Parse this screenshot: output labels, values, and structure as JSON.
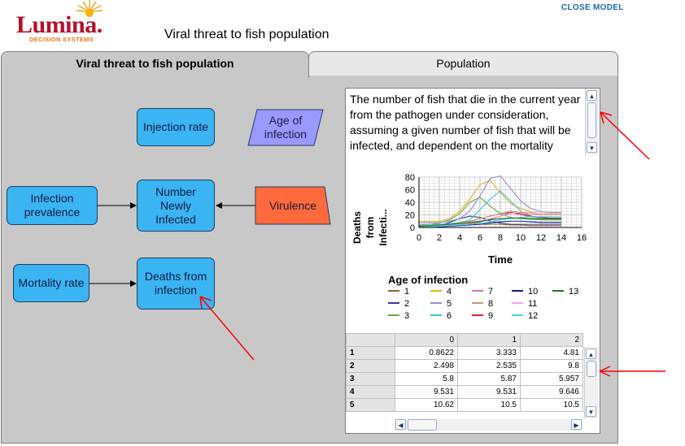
{
  "header": {
    "logo_text": "Lumina.",
    "logo_subtitle": "DECISION SYSTEMS",
    "close_model": "CLOSE MODEL",
    "page_title": "Viral threat to fish population"
  },
  "tabs": [
    {
      "label": "Viral threat to fish population",
      "active": true
    },
    {
      "label": "Population",
      "active": false
    }
  ],
  "nodes": {
    "injection_rate": "Injection rate",
    "age_of_infection": "Age of infection",
    "infection_prevalence": "Infection prevalence",
    "number_newly_infected": "Number Newly Infected",
    "virulence": "Virulence",
    "mortality_rate": "Mortality rate",
    "deaths_from_infection": "Deaths from infection"
  },
  "colors": {
    "variable_node": "#3ab4f2",
    "decision_node": "#9999ff",
    "chance_node": "#ff6a3d",
    "annotation_arrow": "#ff0000"
  },
  "description": "The number of fish that die in the current year from the pathogen under consideration, assuming a given number of fish that will be infected, and dependent on the mortality",
  "chart_data": {
    "type": "line",
    "xlabel": "Time",
    "ylabel": "Deaths from Infecti...",
    "xlim": [
      0,
      16
    ],
    "ylim": [
      0,
      80
    ],
    "xticks": [
      0,
      2,
      4,
      6,
      8,
      10,
      12,
      14,
      16
    ],
    "yticks": [
      0,
      20,
      40,
      60,
      80
    ],
    "grid": true,
    "legend_title": "Age of infection",
    "x": [
      0,
      1,
      2,
      3,
      4,
      5,
      6,
      7,
      8,
      9,
      10,
      11,
      12,
      13,
      14
    ],
    "series": [
      {
        "name": "1",
        "color": "#9a5a3a",
        "values": [
          0,
          1,
          2,
          3,
          4,
          5,
          5,
          5,
          5,
          4,
          4,
          3,
          3,
          3,
          3
        ]
      },
      {
        "name": "2",
        "color": "#3a3a8a",
        "values": [
          0,
          1,
          3,
          8,
          14,
          18,
          16,
          10,
          7,
          5,
          5,
          5,
          5,
          5,
          5
        ]
      },
      {
        "name": "3",
        "color": "#6aa83a",
        "values": [
          3,
          5,
          7,
          12,
          22,
          40,
          48,
          34,
          22,
          16,
          14,
          13,
          12,
          12,
          12
        ]
      },
      {
        "name": "4",
        "color": "#e8b020",
        "values": [
          10,
          10,
          10,
          14,
          26,
          45,
          68,
          75,
          55,
          38,
          30,
          25,
          22,
          22,
          22
        ]
      },
      {
        "name": "5",
        "color": "#9a8ac8",
        "values": [
          8,
          8,
          8,
          10,
          14,
          26,
          50,
          78,
          82,
          62,
          42,
          30,
          25,
          24,
          24
        ]
      },
      {
        "name": "6",
        "color": "#3ac8c8",
        "values": [
          5,
          5,
          5,
          6,
          8,
          12,
          28,
          45,
          58,
          42,
          26,
          18,
          14,
          13,
          13
        ]
      },
      {
        "name": "7",
        "color": "#d86ad8",
        "values": [
          2,
          2,
          3,
          4,
          6,
          9,
          14,
          18,
          22,
          24,
          20,
          17,
          15,
          14,
          14
        ]
      },
      {
        "name": "8",
        "color": "#b8a070",
        "values": [
          3,
          3,
          4,
          5,
          7,
          10,
          14,
          18,
          22,
          26,
          24,
          22,
          20,
          20,
          20
        ]
      },
      {
        "name": "9",
        "color": "#e82020",
        "values": [
          1,
          1,
          2,
          3,
          4,
          6,
          9,
          13,
          18,
          24,
          22,
          18,
          16,
          15,
          15
        ]
      },
      {
        "name": "10",
        "color": "#101a8a",
        "values": [
          0,
          0,
          1,
          2,
          3,
          4,
          5,
          7,
          9,
          10,
          10,
          9,
          8,
          8,
          8
        ]
      },
      {
        "name": "11",
        "color": "#f0a8e0",
        "values": [
          1,
          1,
          2,
          3,
          5,
          7,
          10,
          14,
          18,
          22,
          25,
          24,
          22,
          21,
          21
        ]
      },
      {
        "name": "12",
        "color": "#40d8f0",
        "values": [
          0,
          1,
          2,
          3,
          4,
          5,
          7,
          9,
          12,
          14,
          16,
          17,
          17,
          17,
          17
        ]
      },
      {
        "name": "13",
        "color": "#1a7a1a",
        "values": [
          2,
          3,
          4,
          5,
          6,
          8,
          10,
          12,
          14,
          15,
          15,
          14,
          14,
          14,
          14
        ]
      }
    ]
  },
  "table": {
    "columns": [
      "0",
      "1",
      "2"
    ],
    "rows": [
      {
        "label": "1",
        "values": [
          "0.8622",
          "3.333",
          "4.81"
        ]
      },
      {
        "label": "2",
        "values": [
          "2.498",
          "2.535",
          "9.8"
        ]
      },
      {
        "label": "3",
        "values": [
          "5.8",
          "5.87",
          "5.957"
        ]
      },
      {
        "label": "4",
        "values": [
          "9.531",
          "9.531",
          "9.646"
        ]
      },
      {
        "label": "5",
        "values": [
          "10.62",
          "10.5",
          "10.5"
        ]
      }
    ]
  }
}
